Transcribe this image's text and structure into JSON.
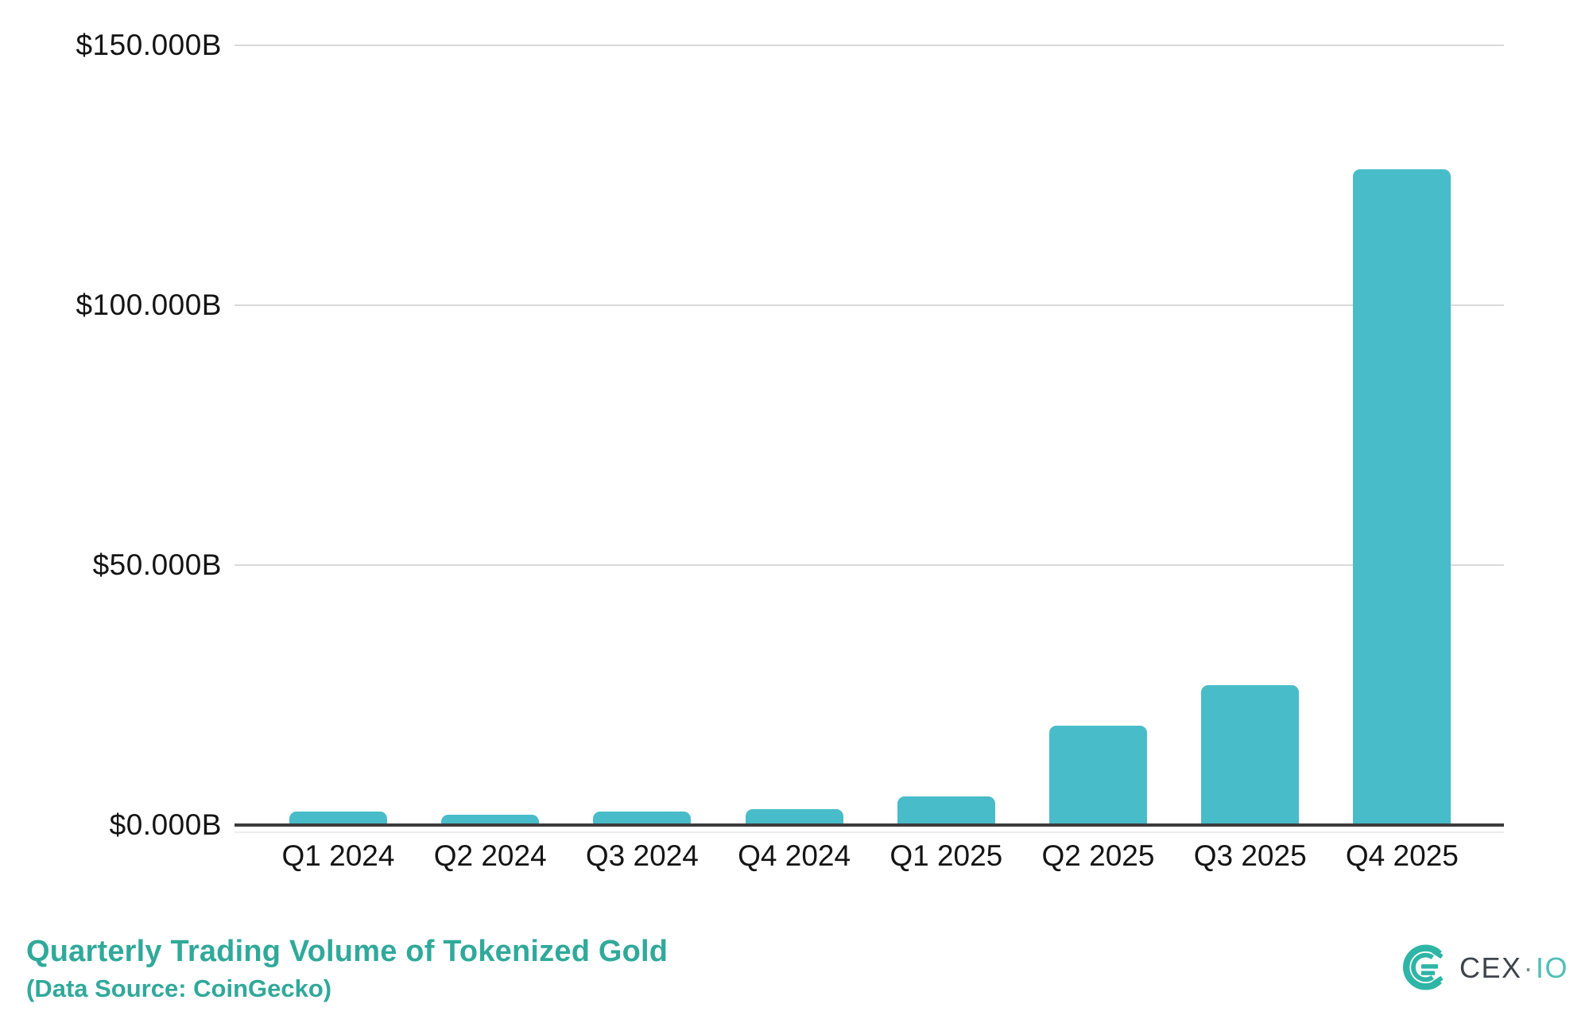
{
  "chart_data": {
    "type": "bar",
    "title": "Quarterly Trading Volume of Tokenized Gold",
    "subtitle": "(Data Source: CoinGecko)",
    "categories": [
      "Q1 2024",
      "Q2 2024",
      "Q3 2024",
      "Q4 2024",
      "Q1 2025",
      "Q2 2025",
      "Q3 2025",
      "Q4 2025"
    ],
    "values": [
      2.6,
      2.0,
      2.6,
      3.1,
      5.5,
      19.1,
      26.9,
      126.1
    ],
    "values_unit": "USD billions",
    "ylim": [
      0,
      150
    ],
    "yticks": [
      {
        "value": 0,
        "label": "$0.000B"
      },
      {
        "value": 50,
        "label": "$50.000B"
      },
      {
        "value": 100,
        "label": "$100.000B"
      },
      {
        "value": 150,
        "label": "$150.000B"
      }
    ],
    "xlabel": "",
    "ylabel": "",
    "grid": true,
    "legend": "none",
    "bar_color": "#48BCC8"
  },
  "branding": {
    "logo_icon": "cexio-logo-icon",
    "name_primary": "CEX",
    "separator": "·",
    "name_secondary": "IO",
    "icon_color": "#2EB5A5"
  },
  "colors": {
    "title_teal": "#30A99A",
    "bar_teal": "#48BCC8",
    "gridline": "#D9D9D9",
    "axis_line": "#3C3C3C",
    "tick_text": "#141414",
    "background": "#FFFFFF"
  }
}
